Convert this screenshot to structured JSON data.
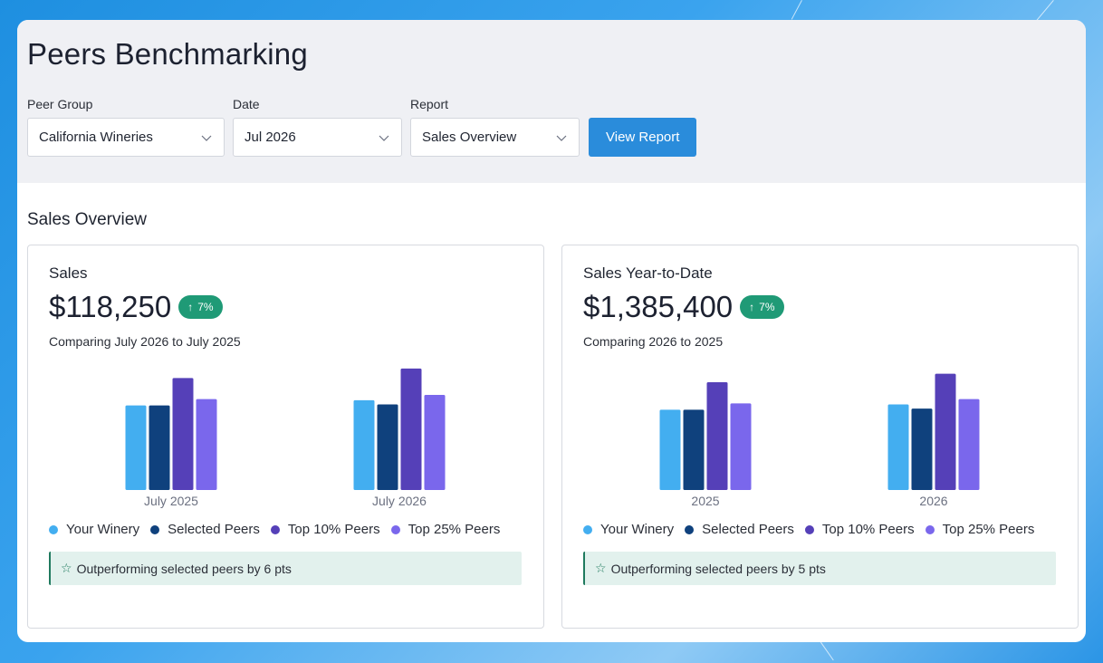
{
  "page": {
    "title": "Peers Benchmarking"
  },
  "filters": {
    "peer_group": {
      "label": "Peer Group",
      "value": "California Wineries"
    },
    "date": {
      "label": "Date",
      "value": "Jul 2026"
    },
    "report": {
      "label": "Report",
      "value": "Sales Overview"
    },
    "view_button": "View Report"
  },
  "section_title": "Sales Overview",
  "colors": {
    "your_winery": "#43aef0",
    "selected_peers": "#0f417d",
    "top_10": "#5540b8",
    "top_25": "#7a67ec",
    "badge": "#1f9a76",
    "button": "#2a8cdb"
  },
  "cards": [
    {
      "title": "Sales",
      "value": "$118,250",
      "change": "7%",
      "change_icon": "arrow-up-icon",
      "compare_text": "Comparing July 2026 to July 2025",
      "callout": "Outperforming selected peers by 6 pts",
      "legend": [
        "Your Winery",
        "Selected Peers",
        "Top 10% Peers",
        "Top 25% Peers"
      ]
    },
    {
      "title": "Sales Year-to-Date",
      "value": "$1,385,400",
      "change": "7%",
      "change_icon": "arrow-up-icon",
      "compare_text": "Comparing 2026 to 2025",
      "callout": "Outperforming selected peers by 5 pts",
      "legend": [
        "Your Winery",
        "Selected Peers",
        "Top 10% Peers",
        "Top 25% Peers"
      ]
    }
  ],
  "chart_data": [
    {
      "type": "bar",
      "categories": [
        "July 2025",
        "July 2026"
      ],
      "series": [
        {
          "name": "Your Winery",
          "values": [
            80,
            85
          ]
        },
        {
          "name": "Selected Peers",
          "values": [
            80,
            81
          ]
        },
        {
          "name": "Top 10% Peers",
          "values": [
            106,
            115
          ]
        },
        {
          "name": "Top 25% Peers",
          "values": [
            86,
            90
          ]
        }
      ],
      "ylim": [
        0,
        120
      ]
    },
    {
      "type": "bar",
      "categories": [
        "2025",
        "2026"
      ],
      "series": [
        {
          "name": "Your Winery",
          "values": [
            76,
            81
          ]
        },
        {
          "name": "Selected Peers",
          "values": [
            76,
            77
          ]
        },
        {
          "name": "Top 10% Peers",
          "values": [
            102,
            110
          ]
        },
        {
          "name": "Top 25% Peers",
          "values": [
            82,
            86
          ]
        }
      ],
      "ylim": [
        0,
        120
      ]
    }
  ]
}
